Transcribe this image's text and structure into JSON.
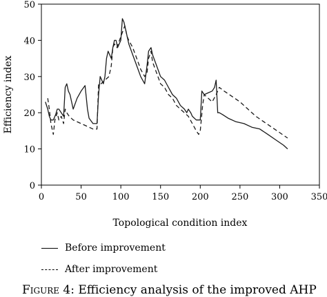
{
  "chart_data": {
    "type": "line",
    "xlabel": "Topological condition index",
    "ylabel": "Efficiency index",
    "xlim": [
      0,
      350
    ],
    "ylim": [
      0,
      50
    ],
    "xticks": [
      0,
      50,
      100,
      150,
      200,
      250,
      300,
      350
    ],
    "yticks": [
      0,
      10,
      20,
      30,
      40,
      50
    ],
    "grid": false,
    "legend_position": "bottom-left-below",
    "series": [
      {
        "name": "Before improvement",
        "style": "solid",
        "x": [
          5,
          8,
          10,
          12,
          15,
          18,
          20,
          22,
          25,
          28,
          30,
          32,
          34,
          36,
          38,
          40,
          45,
          50,
          55,
          58,
          60,
          65,
          70,
          72,
          74,
          76,
          78,
          80,
          82,
          84,
          86,
          88,
          90,
          92,
          94,
          96,
          98,
          100,
          102,
          104,
          106,
          108,
          110,
          115,
          120,
          125,
          130,
          133,
          135,
          138,
          140,
          145,
          150,
          155,
          160,
          165,
          170,
          175,
          180,
          183,
          185,
          188,
          190,
          195,
          200,
          202,
          205,
          210,
          215,
          218,
          220,
          222,
          224,
          228,
          235,
          245,
          255,
          265,
          275,
          285,
          295,
          305,
          310
        ],
        "y": [
          23,
          21,
          19,
          18,
          18,
          19.5,
          21,
          21,
          20,
          19,
          27,
          28,
          26,
          25,
          23,
          21,
          24,
          26,
          27.5,
          21,
          18.5,
          17,
          17,
          25,
          30,
          29,
          28,
          30,
          35,
          37,
          36,
          35,
          38,
          40,
          40,
          38,
          39,
          40,
          46,
          45,
          43,
          41,
          39,
          36,
          33,
          30,
          28,
          33,
          37,
          38,
          36,
          33,
          30,
          29,
          27,
          25,
          24,
          22,
          21,
          20,
          21,
          20,
          19,
          18,
          18,
          26,
          25,
          25.5,
          26,
          27,
          29,
          20,
          20,
          19.5,
          18.5,
          17.5,
          17,
          16,
          15.5,
          14,
          12.5,
          11,
          10
        ]
      },
      {
        "name": "After improvement",
        "style": "dashed",
        "x": [
          8,
          10,
          12,
          15,
          17,
          20,
          22,
          25,
          28,
          30,
          32,
          35,
          40,
          50,
          60,
          65,
          70,
          72,
          75,
          80,
          85,
          88,
          90,
          92,
          95,
          100,
          105,
          108,
          110,
          115,
          120,
          125,
          130,
          133,
          135,
          138,
          140,
          145,
          150,
          155,
          160,
          165,
          170,
          175,
          180,
          185,
          190,
          195,
          198,
          200,
          203,
          205,
          210,
          215,
          220,
          224,
          230,
          240,
          250,
          260,
          270,
          280,
          290,
          300,
          310
        ],
        "y": [
          24,
          21,
          17,
          14,
          18,
          20,
          18,
          19,
          17,
          21,
          20,
          19,
          18,
          17,
          16,
          15.5,
          15.5,
          28,
          28,
          29,
          30,
          33,
          38,
          39,
          38,
          41,
          44,
          41,
          40,
          38,
          35,
          32,
          30,
          31,
          35,
          37,
          34,
          31,
          28,
          27,
          25,
          24,
          22,
          21,
          20,
          19,
          17,
          15,
          14,
          15,
          22,
          25,
          24,
          23,
          25,
          27,
          26,
          24.5,
          23,
          21,
          19,
          17.5,
          16,
          14.5,
          13
        ]
      }
    ]
  },
  "caption": {
    "prefix": "Figure",
    "text": " 4: Efficiency analysis of the improved AHP"
  }
}
